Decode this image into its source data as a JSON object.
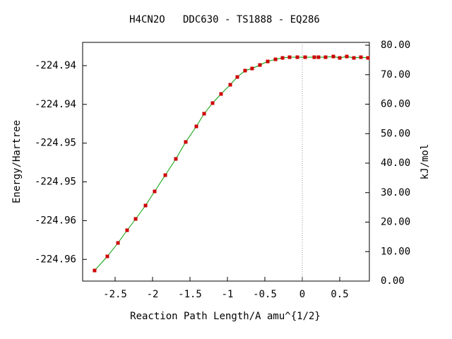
{
  "chart_data": {
    "type": "line",
    "title": "H4CN2O   DDC630 - TS1888 - EQ286",
    "x_label": "Reaction Path Length/A amu^{1/2}",
    "y_label": "Energy/Hartree",
    "y2_label": "kJ/mol",
    "x": [
      -2.774,
      -2.604,
      -2.462,
      -2.34,
      -2.226,
      -2.094,
      -1.972,
      -1.83,
      -1.689,
      -1.557,
      -1.415,
      -1.311,
      -1.198,
      -1.085,
      -0.962,
      -0.868,
      -0.764,
      -0.67,
      -0.566,
      -0.462,
      -0.358,
      -0.264,
      -0.17,
      -0.066,
      0.038,
      0.16,
      0.217,
      0.311,
      0.415,
      0.5,
      0.594,
      0.689,
      0.783,
      0.877
    ],
    "series": [
      {
        "line_color": "#00a000",
        "color": "#cc0000",
        "axis": "y2",
        "values": [
          3.59,
          8.38,
          12.93,
          17.25,
          21.08,
          25.63,
          30.42,
          35.93,
          41.44,
          47.19,
          52.46,
          56.77,
          60.36,
          63.47,
          66.59,
          69.22,
          71.38,
          72.1,
          73.29,
          74.49,
          75.21,
          75.69,
          75.93,
          75.93,
          75.93,
          75.93,
          75.93,
          75.93,
          76.17,
          75.69,
          76.17,
          75.69,
          75.93,
          75.69
        ]
      }
    ],
    "xlim": [
      -2.934,
      0.896
    ],
    "xticks": [
      -2.5,
      -2,
      -1.5,
      -1,
      -0.5,
      0,
      0.5
    ],
    "ylim": [
      -224.9678,
      -224.937
    ],
    "yticks": [
      {
        "value": -224.965,
        "label": "-224.96"
      },
      {
        "value": -224.96,
        "label": "-224.96"
      },
      {
        "value": -224.955,
        "label": "-224.95"
      },
      {
        "value": -224.95,
        "label": "-224.95"
      },
      {
        "value": -224.945,
        "label": "-224.94"
      },
      {
        "value": -224.94,
        "label": "-224.94"
      }
    ],
    "y2lim": [
      0,
      80.96
    ],
    "y2ticks": [
      {
        "value": 0,
        "label": "0.00"
      },
      {
        "value": 10,
        "label": "10.00"
      },
      {
        "value": 20,
        "label": "20.00"
      },
      {
        "value": 30,
        "label": "30.00"
      },
      {
        "value": 40,
        "label": "40.00"
      },
      {
        "value": 50,
        "label": "50.00"
      },
      {
        "value": 60,
        "label": "60.00"
      },
      {
        "value": 70,
        "label": "70.00"
      },
      {
        "value": 80,
        "label": "80.00"
      }
    ],
    "vline": 0
  }
}
